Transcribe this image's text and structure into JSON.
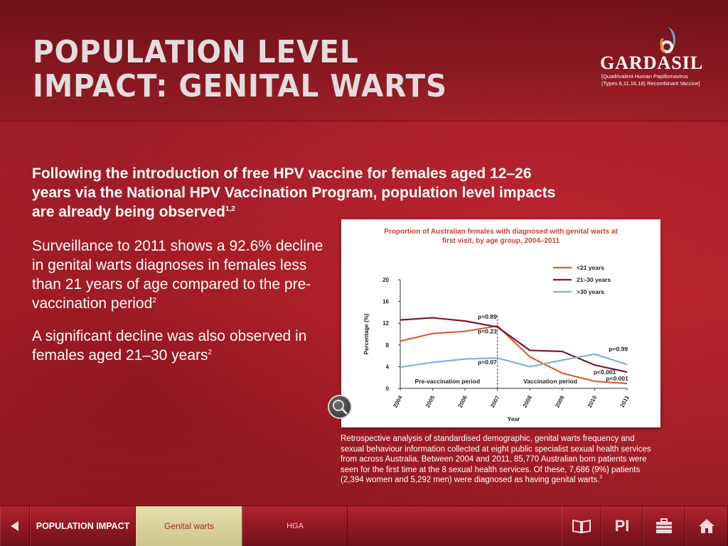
{
  "header": {
    "title_line1": "POPULATION LEVEL",
    "title_line2": "IMPACT: GENITAL WARTS"
  },
  "logo": {
    "word": "GARDASIL",
    "sub_line1": "[Quadrivalent Human Papillomavirus",
    "sub_line2": "(Types 6,11,16,18) Recombinant Vaccine]"
  },
  "content": {
    "lead": "Following the introduction of free HPV vaccine for females aged 12–26 years via the National HPV Vaccination Program, population level impacts are already being observed",
    "lead_ref": "1,2",
    "para1": "Surveillance to 2011 shows a 92.6% decline in genital warts diagnoses in females less than 21 years of age compared to the pre-vaccination period",
    "para1_ref": "2",
    "para2": "A significant decline was also observed in females aged 21–30 years",
    "para2_ref": "2"
  },
  "caption": {
    "text": "Retrospective analysis of standardised demographic, genital warts frequency and sexual behaviour information collected at eight public specialist sexual health services from across Australia. Between 2004 and 2011, 85,770 Australian born patients were seen for the first time at the 8 sexual health services. Of these, 7,686 (9%) patients (2,394 women and 5,292 men) were diagnosed as having genital warts.",
    "ref": "2"
  },
  "chart_data": {
    "type": "line",
    "title": "Proportion of Australian females with diagnosed with genital warts at first visit, by age group, 2004–2011",
    "xlabel": "Year",
    "ylabel": "Percentage (%)",
    "x": [
      "2004",
      "2005",
      "2006",
      "2007",
      "2008",
      "2009",
      "2010",
      "2011"
    ],
    "ylim": [
      0,
      20
    ],
    "yticks": [
      "0",
      "4",
      "8",
      "12",
      "16",
      "20"
    ],
    "series": [
      {
        "name": "<21 years",
        "color": "#d9602f",
        "values": [
          8.7,
          10.1,
          10.5,
          11.5,
          5.8,
          2.8,
          1.3,
          0.9
        ]
      },
      {
        "name": "21–30 years",
        "color": "#7a1a2e",
        "values": [
          12.6,
          13.0,
          12.4,
          11.3,
          7.0,
          6.8,
          4.3,
          3.0
        ]
      },
      {
        "name": ">30 years",
        "color": "#7fb2dc",
        "values": [
          3.9,
          4.8,
          5.4,
          5.6,
          4.0,
          5.2,
          6.3,
          4.4
        ]
      }
    ],
    "divider_after": "2007",
    "period_labels": [
      "Pre-vaccination period",
      "Vaccination period"
    ],
    "annotations": [
      "p=0.89",
      "p=0.23",
      "p=0.07",
      "p=0.99",
      "p<0.001",
      "p<0.001"
    ],
    "legend": "top-right",
    "grid": false
  },
  "nav": {
    "back_icon": "left-arrow-icon",
    "population_impact": "POPULATION IMPACT",
    "genital_warts": "Genital warts",
    "hga": "HGA",
    "pi": "PI",
    "book_icon": "book-icon",
    "case_icon": "briefcase-icon",
    "home_icon": "home-icon"
  },
  "colors": {
    "background": "#a5202b",
    "active_tab": "#e6dfac",
    "chart_title": "#c8412f"
  }
}
